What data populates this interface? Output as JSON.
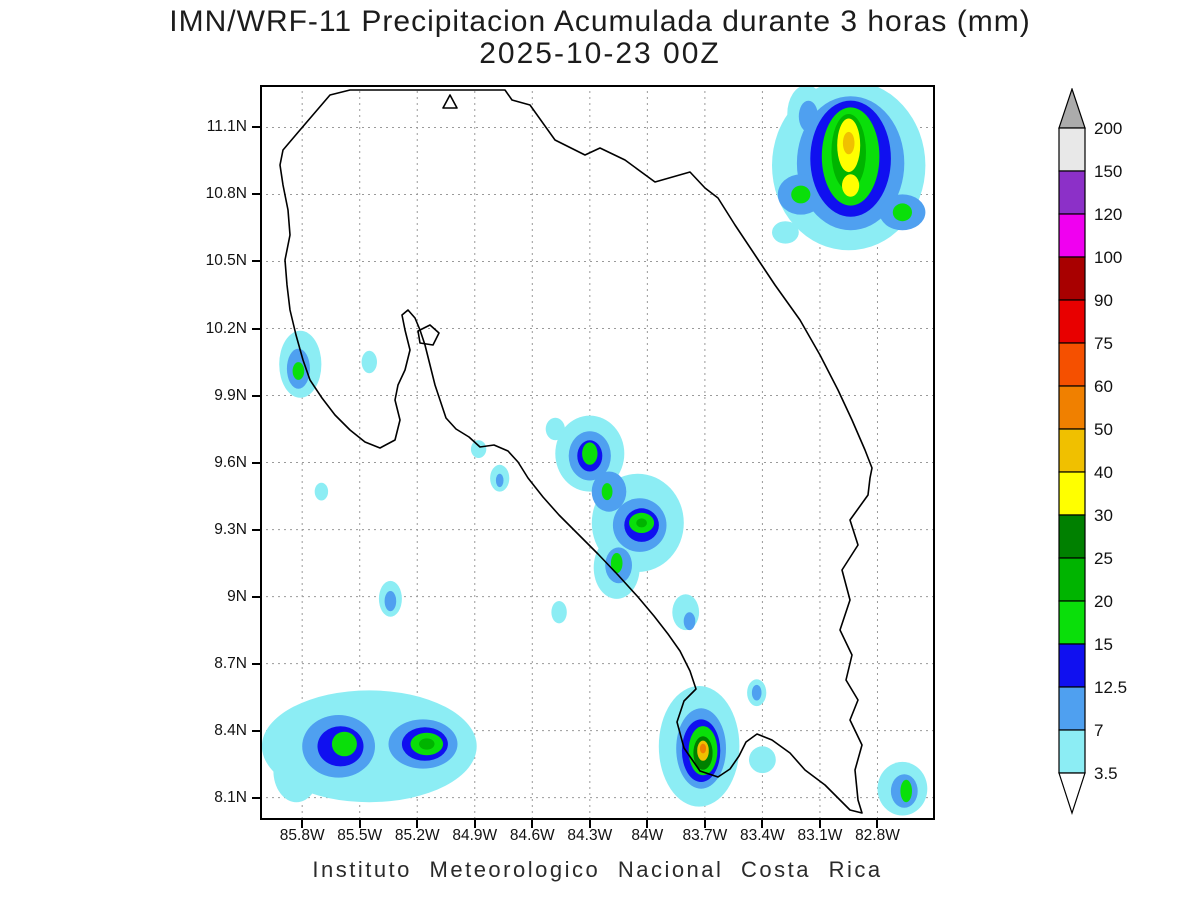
{
  "header": {
    "title": "IMN/WRF-11 Precipitacion Acumulada durante 3 horas (mm)",
    "subtitle": "2025-10-23 00Z"
  },
  "footer": {
    "credit": "Instituto Meteorologico Nacional Costa Rica"
  },
  "chart_data": {
    "type": "heatmap",
    "title": "IMN/WRF-11 Precipitacion Acumulada durante 3 horas (mm)",
    "subtitle": "2025-10-23 00Z",
    "model": "IMN/WRF-11",
    "valid_time": "2025-10-23 00Z",
    "accumulation_hours": 3,
    "units": "mm",
    "region": "Costa Rica",
    "grid": true,
    "legend_position": "right",
    "map_extent": {
      "lon_west": 86.02,
      "lon_east": 82.5,
      "lat_north": 11.29,
      "lat_south": 8.0
    },
    "x_ticks": [
      {
        "label": "85.8W",
        "value": 85.8
      },
      {
        "label": "85.5W",
        "value": 85.5
      },
      {
        "label": "85.2W",
        "value": 85.2
      },
      {
        "label": "84.9W",
        "value": 84.9
      },
      {
        "label": "84.6W",
        "value": 84.6
      },
      {
        "label": "84.3W",
        "value": 84.3
      },
      {
        "label": "84W",
        "value": 84.0
      },
      {
        "label": "83.7W",
        "value": 83.7
      },
      {
        "label": "83.4W",
        "value": 83.4
      },
      {
        "label": "83.1W",
        "value": 83.1
      },
      {
        "label": "82.8W",
        "value": 82.8
      }
    ],
    "y_ticks": [
      {
        "label": "11.1N",
        "value": 11.1
      },
      {
        "label": "10.8N",
        "value": 10.8
      },
      {
        "label": "10.5N",
        "value": 10.5
      },
      {
        "label": "10.2N",
        "value": 10.2
      },
      {
        "label": "9.9N",
        "value": 9.9
      },
      {
        "label": "9.6N",
        "value": 9.6
      },
      {
        "label": "9.3N",
        "value": 9.3
      },
      {
        "label": "9N",
        "value": 9.0
      },
      {
        "label": "8.7N",
        "value": 8.7
      },
      {
        "label": "8.4N",
        "value": 8.4
      },
      {
        "label": "8.1N",
        "value": 8.1
      }
    ],
    "levels_mm": [
      3.5,
      7,
      12.5,
      15,
      20,
      25,
      30,
      40,
      50,
      60,
      75,
      90,
      100,
      120,
      150,
      200
    ],
    "level_colors": {
      "3.5": "#8CEDF4",
      "7": "#4FA0F0",
      "12.5": "#1010F0",
      "15": "#0ADF0A",
      "20": "#00B400",
      "25": "#008000",
      "30": "#FFFF00",
      "40": "#F0C000",
      "50": "#F08000",
      "60": "#F55000",
      "75": "#E80000",
      "90": "#A80000",
      "100": "#F000F0",
      "120": "#8C30C8",
      "150": "#E8E8E8",
      "200": "#ABABAB"
    },
    "colorbar": {
      "labels_top_to_bottom": [
        "200",
        "150",
        "120",
        "100",
        "90",
        "75",
        "60",
        "50",
        "40",
        "30",
        "25",
        "20",
        "15",
        "12.5",
        "7",
        "3.5"
      ],
      "segment_colors_top_to_bottom": [
        "#E8E8E8",
        "#8C30C8",
        "#F000F0",
        "#A80000",
        "#E80000",
        "#F55000",
        "#F08000",
        "#F0C000",
        "#FFFF00",
        "#008000",
        "#00B400",
        "#0ADF0A",
        "#1010F0",
        "#4FA0F0",
        "#8CEDF4"
      ],
      "top_arrow_color": "#ABABAB",
      "bottom_arrow_color": "#FFFFFF"
    },
    "precip_cells": [
      {
        "lon": 82.95,
        "lat": 10.93,
        "rx": 0.4,
        "ry": 0.38,
        "level": "3.5"
      },
      {
        "lon": 83.17,
        "lat": 11.16,
        "rx": 0.1,
        "ry": 0.13,
        "level": "3.5"
      },
      {
        "lon": 83.28,
        "lat": 10.63,
        "rx": 0.07,
        "ry": 0.05,
        "level": "3.5"
      },
      {
        "lon": 82.94,
        "lat": 10.94,
        "rx": 0.28,
        "ry": 0.3,
        "level": "7"
      },
      {
        "lon": 83.2,
        "lat": 10.8,
        "rx": 0.12,
        "ry": 0.09,
        "level": "7"
      },
      {
        "lon": 82.67,
        "lat": 10.72,
        "rx": 0.12,
        "ry": 0.08,
        "level": "7"
      },
      {
        "lon": 83.16,
        "lat": 11.15,
        "rx": 0.05,
        "ry": 0.07,
        "level": "7"
      },
      {
        "lon": 82.94,
        "lat": 10.96,
        "rx": 0.21,
        "ry": 0.26,
        "level": "12.5"
      },
      {
        "lon": 82.94,
        "lat": 10.97,
        "rx": 0.15,
        "ry": 0.22,
        "level": "15"
      },
      {
        "lon": 83.2,
        "lat": 10.8,
        "rx": 0.05,
        "ry": 0.04,
        "level": "15"
      },
      {
        "lon": 82.67,
        "lat": 10.72,
        "rx": 0.05,
        "ry": 0.04,
        "level": "15"
      },
      {
        "lon": 82.95,
        "lat": 10.99,
        "rx": 0.09,
        "ry": 0.17,
        "level": "20"
      },
      {
        "lon": 82.95,
        "lat": 11.02,
        "rx": 0.06,
        "ry": 0.12,
        "level": "30"
      },
      {
        "lon": 82.94,
        "lat": 10.84,
        "rx": 0.045,
        "ry": 0.05,
        "level": "30"
      },
      {
        "lon": 82.95,
        "lat": 11.03,
        "rx": 0.03,
        "ry": 0.05,
        "level": "40"
      },
      {
        "lon": 85.81,
        "lat": 10.04,
        "rx": 0.11,
        "ry": 0.15,
        "level": "3.5"
      },
      {
        "lon": 85.45,
        "lat": 10.05,
        "rx": 0.04,
        "ry": 0.05,
        "level": "3.5"
      },
      {
        "lon": 85.82,
        "lat": 10.02,
        "rx": 0.06,
        "ry": 0.09,
        "level": "7"
      },
      {
        "lon": 85.82,
        "lat": 10.01,
        "rx": 0.03,
        "ry": 0.04,
        "level": "15"
      },
      {
        "lon": 85.7,
        "lat": 9.47,
        "rx": 0.035,
        "ry": 0.04,
        "level": "3.5"
      },
      {
        "lon": 84.3,
        "lat": 9.64,
        "rx": 0.18,
        "ry": 0.17,
        "level": "3.5"
      },
      {
        "lon": 84.05,
        "lat": 9.33,
        "rx": 0.24,
        "ry": 0.22,
        "level": "3.5"
      },
      {
        "lon": 84.16,
        "lat": 9.13,
        "rx": 0.12,
        "ry": 0.14,
        "level": "3.5"
      },
      {
        "lon": 84.48,
        "lat": 9.75,
        "rx": 0.05,
        "ry": 0.05,
        "level": "3.5"
      },
      {
        "lon": 84.77,
        "lat": 9.53,
        "rx": 0.05,
        "ry": 0.06,
        "level": "3.5"
      },
      {
        "lon": 84.88,
        "lat": 9.66,
        "rx": 0.04,
        "ry": 0.04,
        "level": "3.5"
      },
      {
        "lon": 83.8,
        "lat": 8.93,
        "rx": 0.07,
        "ry": 0.08,
        "level": "3.5"
      },
      {
        "lon": 84.3,
        "lat": 9.63,
        "rx": 0.11,
        "ry": 0.11,
        "level": "7"
      },
      {
        "lon": 84.2,
        "lat": 9.47,
        "rx": 0.09,
        "ry": 0.09,
        "level": "7"
      },
      {
        "lon": 84.04,
        "lat": 9.32,
        "rx": 0.14,
        "ry": 0.12,
        "level": "7"
      },
      {
        "lon": 84.15,
        "lat": 9.14,
        "rx": 0.07,
        "ry": 0.08,
        "level": "7"
      },
      {
        "lon": 84.77,
        "lat": 9.52,
        "rx": 0.02,
        "ry": 0.03,
        "level": "7"
      },
      {
        "lon": 83.78,
        "lat": 8.89,
        "rx": 0.03,
        "ry": 0.04,
        "level": "7"
      },
      {
        "lon": 84.3,
        "lat": 9.63,
        "rx": 0.065,
        "ry": 0.07,
        "level": "12.5"
      },
      {
        "lon": 84.03,
        "lat": 9.32,
        "rx": 0.09,
        "ry": 0.075,
        "level": "12.5"
      },
      {
        "lon": 84.3,
        "lat": 9.64,
        "rx": 0.04,
        "ry": 0.05,
        "level": "15"
      },
      {
        "lon": 84.21,
        "lat": 9.47,
        "rx": 0.028,
        "ry": 0.038,
        "level": "15"
      },
      {
        "lon": 84.03,
        "lat": 9.33,
        "rx": 0.065,
        "ry": 0.045,
        "level": "15"
      },
      {
        "lon": 84.16,
        "lat": 9.15,
        "rx": 0.03,
        "ry": 0.045,
        "level": "15"
      },
      {
        "lon": 84.03,
        "lat": 9.33,
        "rx": 0.028,
        "ry": 0.02,
        "level": "20"
      },
      {
        "lon": 85.34,
        "lat": 8.99,
        "rx": 0.06,
        "ry": 0.08,
        "level": "3.5"
      },
      {
        "lon": 85.34,
        "lat": 8.98,
        "rx": 0.03,
        "ry": 0.045,
        "level": "7"
      },
      {
        "lon": 84.46,
        "lat": 8.93,
        "rx": 0.04,
        "ry": 0.05,
        "level": "3.5"
      },
      {
        "lon": 85.45,
        "lat": 8.33,
        "rx": 0.56,
        "ry": 0.25,
        "level": "3.5"
      },
      {
        "lon": 85.83,
        "lat": 8.22,
        "rx": 0.12,
        "ry": 0.14,
        "level": "3.5"
      },
      {
        "lon": 85.61,
        "lat": 8.33,
        "rx": 0.19,
        "ry": 0.14,
        "level": "7"
      },
      {
        "lon": 85.17,
        "lat": 8.34,
        "rx": 0.18,
        "ry": 0.11,
        "level": "7"
      },
      {
        "lon": 85.6,
        "lat": 8.33,
        "rx": 0.12,
        "ry": 0.09,
        "level": "12.5"
      },
      {
        "lon": 85.16,
        "lat": 8.34,
        "rx": 0.12,
        "ry": 0.075,
        "level": "12.5"
      },
      {
        "lon": 85.58,
        "lat": 8.34,
        "rx": 0.065,
        "ry": 0.055,
        "level": "15"
      },
      {
        "lon": 85.15,
        "lat": 8.34,
        "rx": 0.085,
        "ry": 0.05,
        "level": "15"
      },
      {
        "lon": 85.15,
        "lat": 8.34,
        "rx": 0.04,
        "ry": 0.025,
        "level": "20"
      },
      {
        "lon": 83.73,
        "lat": 8.33,
        "rx": 0.21,
        "ry": 0.27,
        "level": "3.5"
      },
      {
        "lon": 83.43,
        "lat": 8.57,
        "rx": 0.05,
        "ry": 0.06,
        "level": "3.5"
      },
      {
        "lon": 83.4,
        "lat": 8.27,
        "rx": 0.07,
        "ry": 0.06,
        "level": "3.5"
      },
      {
        "lon": 83.72,
        "lat": 8.32,
        "rx": 0.13,
        "ry": 0.18,
        "level": "7"
      },
      {
        "lon": 83.43,
        "lat": 8.57,
        "rx": 0.025,
        "ry": 0.035,
        "level": "7"
      },
      {
        "lon": 83.72,
        "lat": 8.31,
        "rx": 0.1,
        "ry": 0.14,
        "level": "12.5"
      },
      {
        "lon": 83.71,
        "lat": 8.31,
        "rx": 0.075,
        "ry": 0.11,
        "level": "15"
      },
      {
        "lon": 83.71,
        "lat": 8.3,
        "rx": 0.05,
        "ry": 0.075,
        "level": "25"
      },
      {
        "lon": 83.71,
        "lat": 8.31,
        "rx": 0.03,
        "ry": 0.045,
        "level": "40"
      },
      {
        "lon": 83.71,
        "lat": 8.32,
        "rx": 0.016,
        "ry": 0.022,
        "level": "50"
      },
      {
        "lon": 82.67,
        "lat": 8.14,
        "rx": 0.13,
        "ry": 0.12,
        "level": "3.5"
      },
      {
        "lon": 82.66,
        "lat": 8.13,
        "rx": 0.07,
        "ry": 0.075,
        "level": "7"
      },
      {
        "lon": 82.65,
        "lat": 8.13,
        "rx": 0.03,
        "ry": 0.05,
        "level": "15"
      }
    ]
  }
}
